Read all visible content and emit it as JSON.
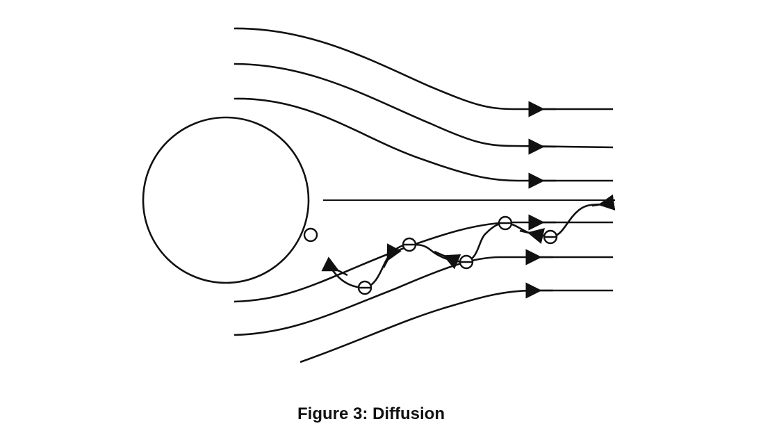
{
  "figure": {
    "caption": "Figure 3: Diffusion",
    "stroke_color": "#111111"
  }
}
